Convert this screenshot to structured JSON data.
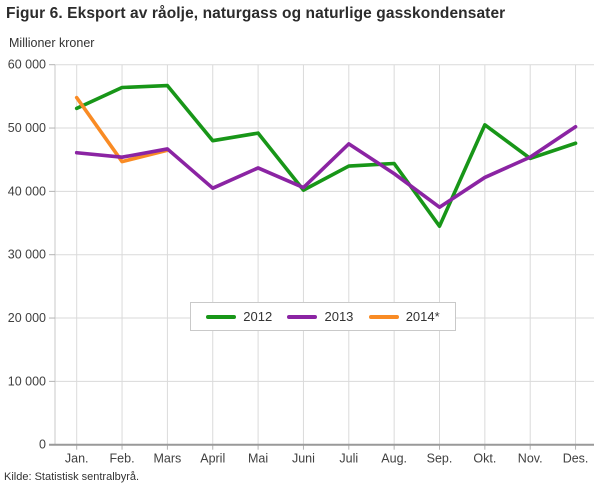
{
  "page": {
    "title": "Figur 6. Eksport av råolje, naturgass og naturlige gasskondensater",
    "y_axis_title": "Millioner kroner",
    "source": "Kilde: Statistisk sentralbyrå."
  },
  "chart_data": {
    "type": "line",
    "title": "Figur 6. Eksport av råolje, naturgass og naturlige gasskondensater",
    "ylabel": "Millioner kroner",
    "categories": [
      "Jan.",
      "Feb.",
      "Mars",
      "April",
      "Mai",
      "Juni",
      "Juli",
      "Aug.",
      "Sep.",
      "Okt.",
      "Nov.",
      "Des."
    ],
    "series": [
      {
        "name": "2012",
        "color": "#189618",
        "values": [
          53100,
          56400,
          56700,
          48000,
          49200,
          40200,
          44000,
          44400,
          34500,
          50500,
          45200,
          47600
        ]
      },
      {
        "name": "2013",
        "color": "#8b24a3",
        "values": [
          46100,
          45400,
          46700,
          40500,
          43700,
          40600,
          47500,
          42800,
          37500,
          42200,
          45400,
          50200
        ]
      },
      {
        "name": "2014*",
        "color": "#f98b24",
        "values": [
          54800,
          44700,
          46500,
          null,
          null,
          null,
          null,
          null,
          null,
          null,
          null,
          null
        ]
      }
    ],
    "ylim": [
      0,
      60000
    ],
    "ytick_step": 10000,
    "ytick_labels": [
      "0",
      "10 000",
      "20 000",
      "30 000",
      "40 000",
      "50 000",
      "60 000"
    ],
    "grid": true,
    "legend_position": "inside-center-lower"
  },
  "colors": {
    "grid": "#dadada",
    "axis_line": "#999999",
    "tick": "#b3b3b3",
    "label_text": "#404040"
  }
}
